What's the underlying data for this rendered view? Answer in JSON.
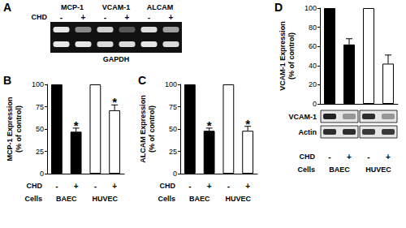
{
  "chart_data": [
    {
      "panel": "B",
      "type": "bar",
      "ylabel": "MCP-1 Expression\n(% of control)",
      "categories": [
        "-",
        "+",
        "-",
        "+"
      ],
      "category_row_label": "CHD",
      "groups": {
        "label": "Cells",
        "names": [
          "BAEC",
          "HUVEC"
        ]
      },
      "values": [
        100,
        47,
        100,
        71
      ],
      "errors": [
        0,
        4,
        0,
        6
      ],
      "colors": [
        "#000000",
        "#000000",
        "#ffffff",
        "#ffffff"
      ],
      "annotations": [
        {
          "index": 1,
          "text": "*"
        },
        {
          "index": 3,
          "text": "*"
        }
      ],
      "ylim": [
        0,
        100
      ],
      "yticks": [
        0,
        25,
        50,
        75,
        100
      ],
      "grid": false
    },
    {
      "panel": "C",
      "type": "bar",
      "ylabel": "ALCAM Expression\n(% of control)",
      "categories": [
        "-",
        "+",
        "-",
        "+"
      ],
      "category_row_label": "CHD",
      "groups": {
        "label": "Cells",
        "names": [
          "BAEC",
          "HUVEC"
        ]
      },
      "values": [
        100,
        48,
        100,
        48
      ],
      "errors": [
        0,
        3,
        0,
        5
      ],
      "colors": [
        "#000000",
        "#000000",
        "#ffffff",
        "#ffffff"
      ],
      "annotations": [
        {
          "index": 1,
          "text": "*"
        },
        {
          "index": 3,
          "text": "*"
        }
      ],
      "ylim": [
        0,
        100
      ],
      "yticks": [
        0,
        25,
        50,
        75,
        100
      ],
      "grid": false
    },
    {
      "panel": "D",
      "type": "bar",
      "ylabel": "VCAM-1 Expression\n(% of control)",
      "categories": [
        "-",
        "+",
        "-",
        "+"
      ],
      "category_row_label": "CHD",
      "groups": {
        "label": "Cells",
        "names": [
          "BAEC",
          "HUVEC"
        ]
      },
      "values": [
        100,
        62,
        100,
        42
      ],
      "errors": [
        0,
        6,
        0,
        9
      ],
      "colors": [
        "#000000",
        "#000000",
        "#ffffff",
        "#ffffff"
      ],
      "ylim": [
        0,
        100
      ],
      "yticks": [
        0,
        20,
        40,
        60,
        80,
        100
      ],
      "grid": false,
      "blot": {
        "rows": [
          {
            "label": "VCAM-1",
            "bands": [
              0.85,
              0.35,
              0.8,
              0.35
            ]
          },
          {
            "label": "Actin",
            "bands": [
              0.8,
              0.8,
              0.75,
              0.75
            ]
          }
        ]
      }
    }
  ],
  "gel": {
    "panel": "A",
    "genes": [
      "MCP-1",
      "VCAM-1",
      "ALCAM"
    ],
    "lane_row_label": "CHD",
    "lanes": [
      "-",
      "+"
    ],
    "target_bands": [
      [
        0.9,
        0.5
      ],
      [
        0.8,
        0.3
      ],
      [
        0.85,
        0.6
      ]
    ],
    "loading_control": "GAPDH",
    "control_bands": [
      0.9,
      0.9,
      0.85,
      0.85,
      0.9,
      0.85
    ]
  }
}
